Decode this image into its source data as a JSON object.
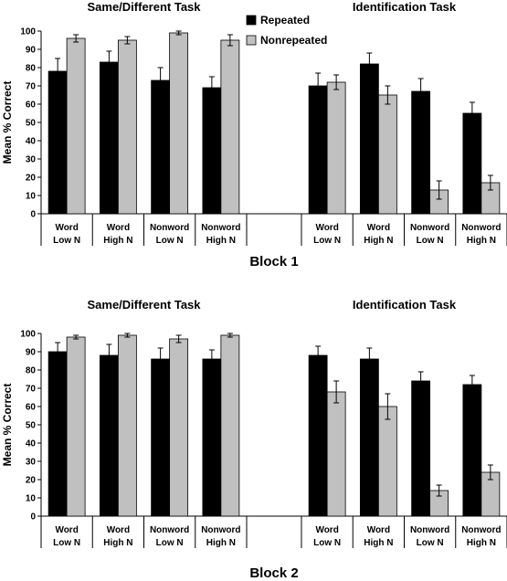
{
  "chart_data": [
    {
      "type": "bar",
      "block_title": "Block 1",
      "ylabel": "Mean % Correct",
      "ylim": [
        0,
        100
      ],
      "yticks": [
        0,
        10,
        20,
        30,
        40,
        50,
        60,
        70,
        80,
        90,
        100
      ],
      "legend": {
        "placement": "top-center",
        "entries": [
          "Repeated",
          "Nonrepeated"
        ]
      },
      "series_colors": [
        "#000000",
        "#c0c0c0"
      ],
      "panels": [
        {
          "title": "Same/Different Task",
          "categories": [
            [
              "Word",
              "Low N"
            ],
            [
              "Word",
              "High N"
            ],
            [
              "Nonword",
              "Low N"
            ],
            [
              "Nonword",
              "High N"
            ]
          ],
          "series": [
            {
              "name": "Repeated",
              "values": [
                78,
                83,
                73,
                69
              ],
              "errors": [
                7,
                6,
                7,
                6
              ]
            },
            {
              "name": "Nonrepeated",
              "values": [
                96,
                95,
                99,
                95
              ],
              "errors": [
                2,
                2,
                1,
                3
              ]
            }
          ]
        },
        {
          "title": "Identification Task",
          "categories": [
            [
              "Word",
              "Low N"
            ],
            [
              "Word",
              "High N"
            ],
            [
              "Nonword",
              "Low N"
            ],
            [
              "Nonword",
              "High N"
            ]
          ],
          "series": [
            {
              "name": "Repeated",
              "values": [
                70,
                82,
                67,
                55
              ],
              "errors": [
                7,
                6,
                7,
                6
              ]
            },
            {
              "name": "Nonrepeated",
              "values": [
                72,
                65,
                13,
                17
              ],
              "errors": [
                4,
                5,
                5,
                4
              ]
            }
          ]
        }
      ]
    },
    {
      "type": "bar",
      "block_title": "Block 2",
      "ylabel": "Mean % Correct",
      "ylim": [
        0,
        100
      ],
      "yticks": [
        0,
        10,
        20,
        30,
        40,
        50,
        60,
        70,
        80,
        90,
        100
      ],
      "legend": null,
      "series_colors": [
        "#000000",
        "#c0c0c0"
      ],
      "panels": [
        {
          "title": "Same/Different Task",
          "categories": [
            [
              "Word",
              "Low N"
            ],
            [
              "Word",
              "High N"
            ],
            [
              "Nonword",
              "Low N"
            ],
            [
              "Nonword",
              "High N"
            ]
          ],
          "series": [
            {
              "name": "Repeated",
              "values": [
                90,
                88,
                86,
                86
              ],
              "errors": [
                5,
                6,
                6,
                5
              ]
            },
            {
              "name": "Nonrepeated",
              "values": [
                98,
                99,
                97,
                99
              ],
              "errors": [
                1,
                1,
                2,
                1
              ]
            }
          ]
        },
        {
          "title": "Identification Task",
          "categories": [
            [
              "Word",
              "Low N"
            ],
            [
              "Word",
              "High N"
            ],
            [
              "Nonword",
              "Low N"
            ],
            [
              "Nonword",
              "High N"
            ]
          ],
          "series": [
            {
              "name": "Repeated",
              "values": [
                88,
                86,
                74,
                72
              ],
              "errors": [
                5,
                6,
                5,
                5
              ]
            },
            {
              "name": "Nonrepeated",
              "values": [
                68,
                60,
                14,
                24
              ],
              "errors": [
                6,
                7,
                3,
                4
              ]
            }
          ]
        }
      ]
    }
  ]
}
